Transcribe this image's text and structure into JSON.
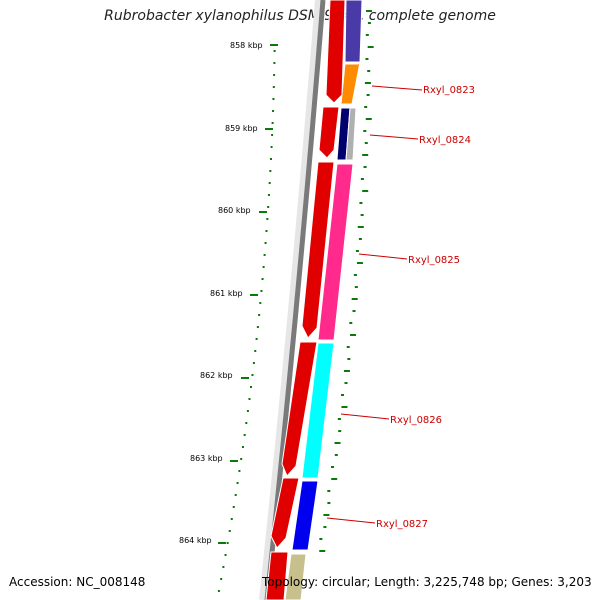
{
  "title": "Rubrobacter xylanophilus DSM 9941, complete genome",
  "scale_ticks": [
    "858 kbp",
    "859 kbp",
    "860 kbp",
    "861 kbp",
    "862 kbp",
    "863 kbp",
    "864 kbp"
  ],
  "genes": [
    {
      "label": "Rxyl_0823",
      "color": "#ff8c00"
    },
    {
      "label": "Rxyl_0824",
      "color": "#00006e"
    },
    {
      "label": "Rxyl_0825",
      "color": "#ff2a8c"
    },
    {
      "label": "Rxyl_0826",
      "color": "#00ffff"
    },
    {
      "label": "Rxyl_0827",
      "color": "#0000ee"
    }
  ],
  "footer": {
    "accession": "Accession: NC_008148",
    "topology": "Topology: circular; Length: 3,225,748 bp; Genes: 3,203"
  }
}
